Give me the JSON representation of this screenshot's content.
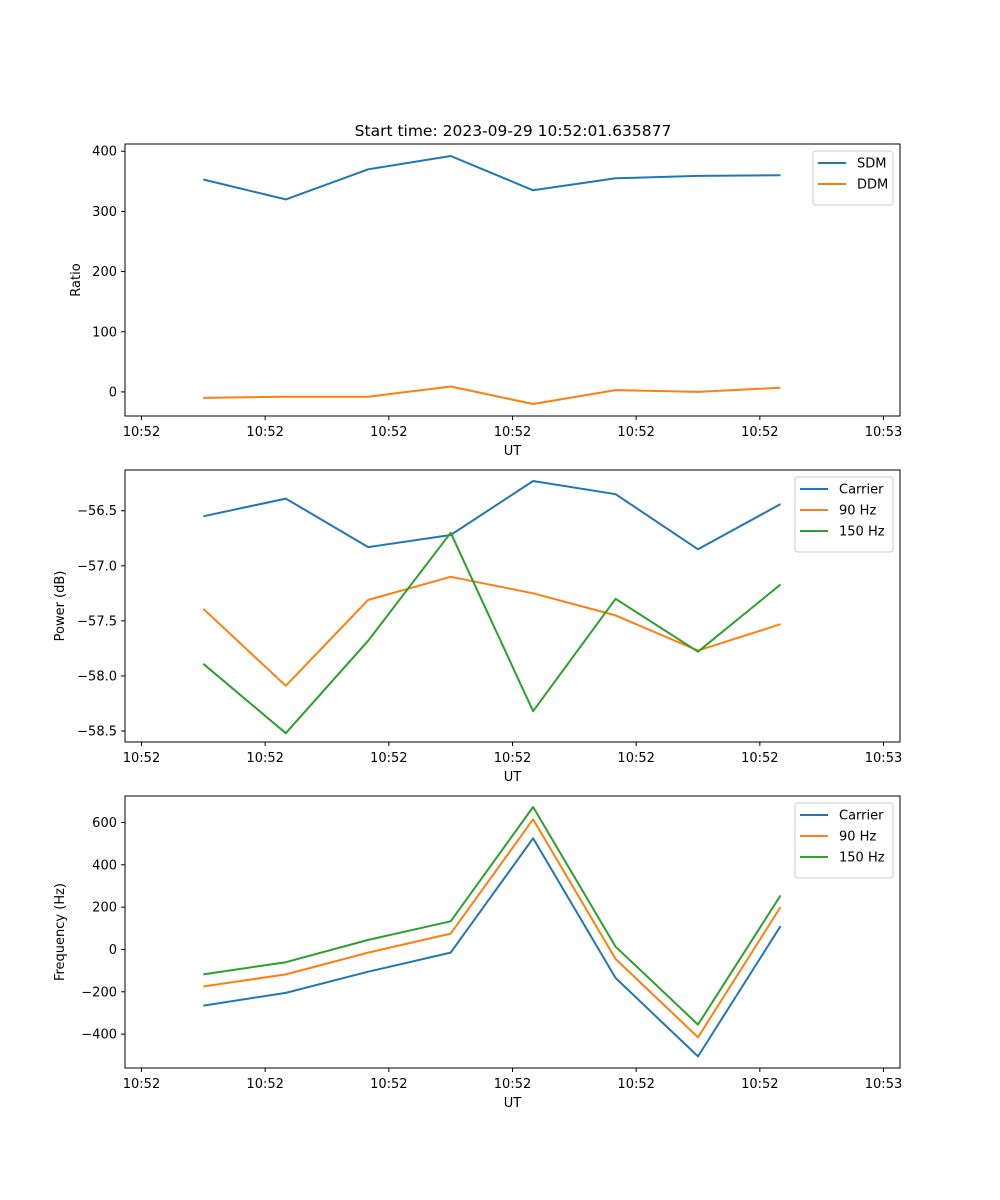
{
  "figure": {
    "title": "Start time: 2023-09-29 10:52:01.635877"
  },
  "chart_data": [
    {
      "type": "line",
      "xlabel": "UT",
      "ylabel": "Ratio",
      "x": [
        0.75,
        1.75,
        2.75,
        3.75,
        4.75,
        5.75,
        6.75,
        7.75
      ],
      "xlim": [
        -0.2,
        9.2
      ],
      "xticks": [
        0,
        1.5,
        3,
        4.5,
        6,
        7.5,
        9
      ],
      "xtick_labels": [
        "10:52",
        "10:52",
        "10:52",
        "10:52",
        "10:52",
        "10:52",
        "10:53"
      ],
      "ylim": [
        -40,
        412
      ],
      "yticks": [
        0,
        100,
        200,
        300,
        400
      ],
      "ytick_labels": [
        "0",
        "100",
        "200",
        "300",
        "400"
      ],
      "legend_position": "top-right",
      "series": [
        {
          "name": "SDM",
          "color": "#1f77b4",
          "values": [
            353,
            320,
            370,
            392,
            335,
            355,
            359,
            360
          ]
        },
        {
          "name": "DDM",
          "color": "#ff7f0e",
          "values": [
            -10,
            -8,
            -8,
            9,
            -20,
            3,
            0,
            7
          ]
        }
      ]
    },
    {
      "type": "line",
      "xlabel": "UT",
      "ylabel": "Power (dB)",
      "x": [
        0.75,
        1.75,
        2.75,
        3.75,
        4.75,
        5.75,
        6.75,
        7.75
      ],
      "xlim": [
        -0.2,
        9.2
      ],
      "xticks": [
        0,
        1.5,
        3,
        4.5,
        6,
        7.5,
        9
      ],
      "xtick_labels": [
        "10:52",
        "10:52",
        "10:52",
        "10:52",
        "10:52",
        "10:52",
        "10:53"
      ],
      "ylim": [
        -58.6,
        -56.13
      ],
      "yticks": [
        -56.5,
        -57.0,
        -57.5,
        -58.0,
        -58.5
      ],
      "ytick_labels": [
        "−56.5",
        "−57.0",
        "−57.5",
        "−58.0",
        "−58.5"
      ],
      "legend_position": "top-right",
      "series": [
        {
          "name": "Carrier",
          "color": "#1f77b4",
          "values": [
            -56.55,
            -56.39,
            -56.83,
            -56.72,
            -56.23,
            -56.35,
            -56.85,
            -56.44
          ]
        },
        {
          "name": "90 Hz",
          "color": "#ff7f0e",
          "values": [
            -57.39,
            -58.09,
            -57.31,
            -57.1,
            -57.25,
            -57.45,
            -57.77,
            -57.53
          ]
        },
        {
          "name": "150 Hz",
          "color": "#2ca02c",
          "values": [
            -57.89,
            -58.52,
            -57.68,
            -56.7,
            -58.32,
            -57.3,
            -57.78,
            -57.17
          ]
        }
      ]
    },
    {
      "type": "line",
      "xlabel": "UT",
      "ylabel": "Frequency (Hz)",
      "x": [
        0.75,
        1.75,
        2.75,
        3.75,
        4.75,
        5.75,
        6.75,
        7.75
      ],
      "xlim": [
        -0.2,
        9.2
      ],
      "xticks": [
        0,
        1.5,
        3,
        4.5,
        6,
        7.5,
        9
      ],
      "xtick_labels": [
        "10:52",
        "10:52",
        "10:52",
        "10:52",
        "10:52",
        "10:52",
        "10:53"
      ],
      "ylim": [
        -560,
        725
      ],
      "yticks": [
        600,
        400,
        200,
        0,
        -200,
        -400
      ],
      "ytick_labels": [
        "600",
        "400",
        "200",
        "0",
        "−200",
        "−400"
      ],
      "legend_position": "top-right",
      "series": [
        {
          "name": "Carrier",
          "color": "#1f77b4",
          "values": [
            -265,
            -205,
            -105,
            -15,
            525,
            -135,
            -505,
            110
          ]
        },
        {
          "name": "90 Hz",
          "color": "#ff7f0e",
          "values": [
            -175,
            -118,
            -15,
            75,
            615,
            -45,
            -415,
            200
          ]
        },
        {
          "name": "150 Hz",
          "color": "#2ca02c",
          "values": [
            -118,
            -60,
            45,
            133,
            673,
            13,
            -355,
            255
          ]
        }
      ]
    }
  ]
}
